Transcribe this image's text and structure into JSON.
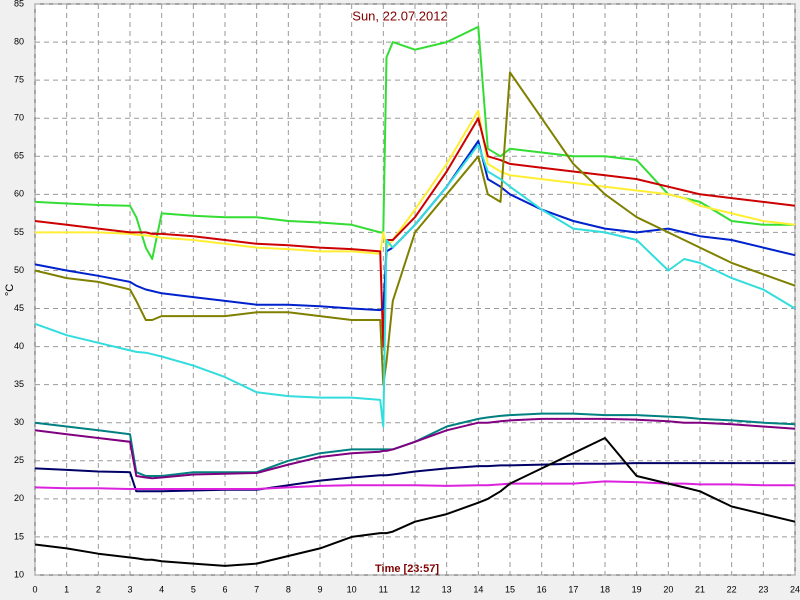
{
  "chart_data": {
    "type": "line",
    "title": "Sun, 22.07.2012",
    "xlabel": "Time [23:57]",
    "ylabel": "°C",
    "xlim": [
      0,
      24
    ],
    "ylim": [
      10,
      85
    ],
    "xticks": [
      0,
      1,
      2,
      3,
      4,
      5,
      6,
      7,
      8,
      9,
      10,
      11,
      12,
      13,
      14,
      15,
      16,
      17,
      18,
      19,
      20,
      21,
      22,
      23,
      24
    ],
    "yticks": [
      10,
      15,
      20,
      25,
      30,
      35,
      40,
      45,
      50,
      55,
      60,
      65,
      70,
      75,
      80,
      85
    ],
    "grid": true,
    "x": [
      0,
      1,
      2,
      3,
      3.2,
      3.5,
      3.7,
      4,
      5,
      6,
      7,
      8,
      9,
      10,
      10.9,
      11,
      11.1,
      11.3,
      12,
      13,
      14,
      14.3,
      14.7,
      15,
      16,
      17,
      18,
      19,
      20,
      20.5,
      21,
      22,
      23,
      24
    ],
    "series": [
      {
        "color": "#33dd33",
        "values": [
          59,
          58.8,
          58.6,
          58.5,
          57,
          53,
          51.5,
          57.5,
          57.2,
          57,
          57,
          56.5,
          56.3,
          56,
          55,
          55,
          78,
          80,
          79,
          80,
          82,
          66,
          65,
          66,
          65.5,
          65,
          65,
          64.5,
          60,
          59.5,
          59,
          56.5,
          56,
          56
        ]
      },
      {
        "color": "#ffee33",
        "values": [
          55,
          55,
          55,
          54.8,
          54.7,
          54.6,
          54.5,
          54.3,
          54,
          53.5,
          53,
          52.8,
          52.5,
          52.5,
          52.2,
          55,
          53,
          54,
          58,
          64,
          71,
          64,
          63,
          62.5,
          62,
          61.5,
          61,
          60.5,
          60,
          59.5,
          58.5,
          57.5,
          56.5,
          56
        ]
      },
      {
        "color": "#cc0000",
        "values": [
          56.5,
          56,
          55.5,
          55,
          55,
          55,
          54.8,
          54.8,
          54.5,
          54,
          53.5,
          53.3,
          53,
          52.8,
          52.5,
          40,
          54,
          54,
          57,
          63,
          70,
          65,
          64.5,
          64,
          63.5,
          63,
          62.5,
          62,
          61,
          60.5,
          60,
          59.5,
          59,
          58.5
        ]
      },
      {
        "color": "#0022cc",
        "values": [
          50.8,
          50,
          49.3,
          48.5,
          48,
          47.5,
          47.3,
          47,
          46.5,
          46,
          45.5,
          45.5,
          45.3,
          45,
          44.8,
          45,
          52.5,
          53,
          56,
          61,
          67,
          62,
          61,
          60,
          58,
          56.5,
          55.5,
          55,
          55.5,
          55,
          54.5,
          54,
          53,
          52
        ]
      },
      {
        "color": "#808000",
        "values": [
          50,
          49,
          48.5,
          47.5,
          46,
          43.5,
          43.5,
          44,
          44,
          44,
          44.5,
          44.5,
          44,
          43.5,
          43.5,
          35,
          38,
          46,
          55,
          60,
          65,
          60,
          59,
          76,
          70,
          64,
          60,
          57,
          55,
          54,
          53,
          51,
          49.5,
          48
        ]
      },
      {
        "color": "#33dddd",
        "values": [
          43,
          41.5,
          40.5,
          39.5,
          39.3,
          39.2,
          39,
          38.7,
          37.5,
          36,
          34,
          33.5,
          33.3,
          33.3,
          33,
          29.5,
          54,
          53,
          56,
          61,
          66.5,
          63,
          62,
          61,
          58,
          55.5,
          55,
          54,
          50,
          51.5,
          51,
          49,
          47.5,
          45
        ]
      },
      {
        "color": "#008080",
        "values": [
          30,
          29.5,
          29,
          28.5,
          23.5,
          23,
          23,
          23,
          23.5,
          23.5,
          23.5,
          25,
          26,
          26.5,
          26.5,
          26.5,
          26.5,
          26.5,
          27.5,
          29.5,
          30.5,
          30.7,
          30.9,
          31,
          31.2,
          31.2,
          31,
          31,
          30.8,
          30.7,
          30.5,
          30.3,
          30,
          29.8
        ]
      },
      {
        "color": "#800080",
        "values": [
          29,
          28.5,
          28,
          27.5,
          23,
          22.8,
          22.7,
          22.8,
          23.2,
          23.3,
          23.4,
          24.5,
          25.5,
          26,
          26.2,
          26.3,
          26.3,
          26.5,
          27.5,
          29,
          30,
          30,
          30.2,
          30.3,
          30.5,
          30.5,
          30.5,
          30.4,
          30.2,
          30,
          30,
          29.8,
          29.5,
          29.2
        ]
      },
      {
        "color": "#000066",
        "values": [
          24,
          23.8,
          23.6,
          23.5,
          21,
          21,
          21,
          21,
          21.1,
          21.2,
          21.2,
          21.8,
          22.4,
          22.8,
          23.1,
          23.1,
          23.1,
          23.2,
          23.6,
          24,
          24.3,
          24.3,
          24.4,
          24.4,
          24.5,
          24.6,
          24.6,
          24.7,
          24.7,
          24.7,
          24.7,
          24.7,
          24.7,
          24.7
        ]
      },
      {
        "color": "#dd22dd",
        "values": [
          21.5,
          21.4,
          21.4,
          21.3,
          21.3,
          21.3,
          21.3,
          21.3,
          21.3,
          21.3,
          21.3,
          21.5,
          21.7,
          21.8,
          21.8,
          21.8,
          21.8,
          21.8,
          21.8,
          21.7,
          21.8,
          21.8,
          21.9,
          22,
          22,
          22,
          22.3,
          22.2,
          22,
          22,
          21.9,
          21.9,
          21.8,
          21.8
        ]
      },
      {
        "color": "#000000",
        "values": [
          14,
          13.5,
          12.8,
          12.3,
          12.2,
          12,
          12,
          11.8,
          11.5,
          11.2,
          11.5,
          12.5,
          13.5,
          15,
          15.5,
          15.5,
          15.5,
          15.7,
          17,
          18,
          19.5,
          20,
          21,
          22,
          24,
          26,
          28,
          23,
          22,
          21.5,
          21,
          19,
          18,
          17
        ]
      }
    ]
  }
}
